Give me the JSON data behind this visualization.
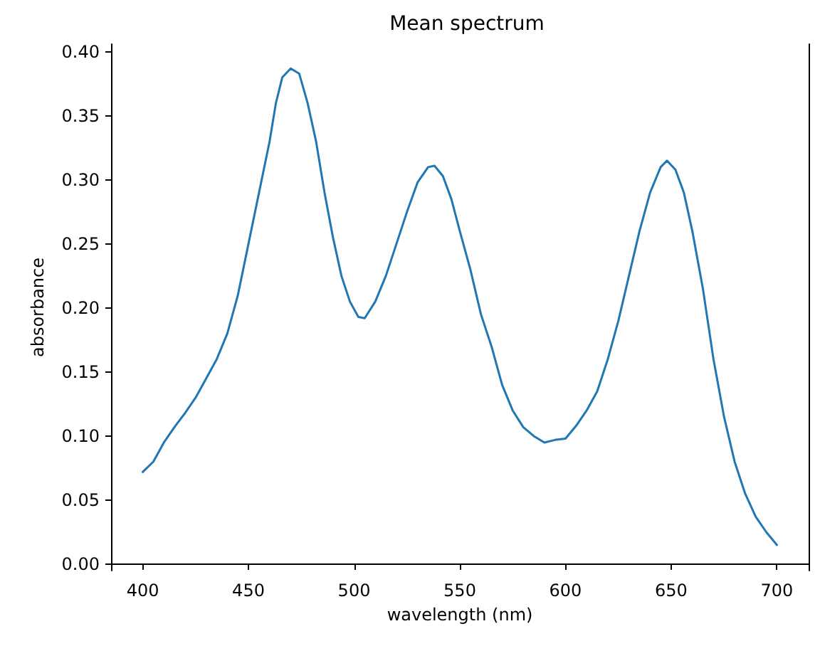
{
  "chart_data": {
    "type": "line",
    "title": "Mean spectrum",
    "xlabel": "wavelength (nm)",
    "ylabel": "absorbance",
    "x": [
      400,
      405,
      410,
      415,
      420,
      425,
      430,
      435,
      440,
      445,
      450,
      455,
      460,
      463,
      466,
      470,
      474,
      478,
      482,
      486,
      490,
      494,
      498,
      502,
      505,
      510,
      515,
      520,
      525,
      530,
      535,
      538,
      542,
      546,
      550,
      555,
      560,
      565,
      570,
      575,
      580,
      585,
      590,
      595,
      600,
      605,
      610,
      615,
      620,
      625,
      630,
      635,
      640,
      645,
      648,
      652,
      656,
      660,
      665,
      670,
      675,
      680,
      685,
      690,
      695,
      700
    ],
    "series": [
      {
        "color": "#1f77b4",
        "values": [
          0.072,
          0.08,
          0.095,
          0.107,
          0.118,
          0.13,
          0.145,
          0.16,
          0.18,
          0.21,
          0.25,
          0.29,
          0.33,
          0.36,
          0.38,
          0.387,
          0.383,
          0.36,
          0.33,
          0.29,
          0.255,
          0.225,
          0.205,
          0.193,
          0.192,
          0.205,
          0.225,
          0.25,
          0.275,
          0.298,
          0.31,
          0.311,
          0.303,
          0.285,
          0.26,
          0.23,
          0.195,
          0.17,
          0.14,
          0.12,
          0.107,
          0.1,
          0.095,
          0.097,
          0.098,
          0.108,
          0.12,
          0.135,
          0.16,
          0.19,
          0.225,
          0.26,
          0.29,
          0.31,
          0.315,
          0.308,
          0.29,
          0.26,
          0.215,
          0.16,
          0.115,
          0.08,
          0.055,
          0.037,
          0.025,
          0.015
        ]
      }
    ],
    "xlim": [
      385,
      715
    ],
    "xticks": [
      400,
      450,
      500,
      550,
      600,
      650,
      700
    ],
    "ylim": [
      -0.005,
      0.406
    ],
    "yticks": [
      {
        "value": 0,
        "label": "0.00"
      },
      {
        "value": 0.05,
        "label": "0.05"
      },
      {
        "value": 0.1,
        "label": "0.10"
      },
      {
        "value": 0.15,
        "label": "0.15"
      },
      {
        "value": 0.2,
        "label": "0.20"
      },
      {
        "value": 0.25,
        "label": "0.25"
      },
      {
        "value": 0.3,
        "label": "0.30"
      },
      {
        "value": 0.35,
        "label": "0.35"
      },
      {
        "value": 0.4,
        "label": "0.40"
      }
    ],
    "marker": "none",
    "line_style": "solid"
  }
}
